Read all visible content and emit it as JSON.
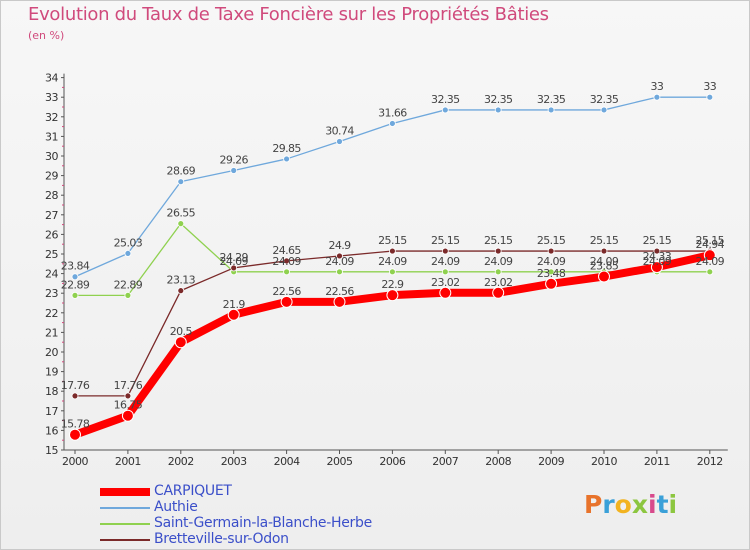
{
  "header": {
    "title": "Evolution du Taux de Taxe Foncière sur les Propriétés Bâties",
    "unit": "(en %)"
  },
  "brand": {
    "logo_text": "Proxiti"
  },
  "chart_data": {
    "type": "line",
    "title": "Evolution du Taux de Taxe Foncière sur les Propriétés Bâties",
    "ylabel": "(en %)",
    "xlabel": "",
    "ylim": [
      15,
      34
    ],
    "categories": [
      "2000",
      "2001",
      "2002",
      "2003",
      "2004",
      "2005",
      "2006",
      "2007",
      "2008",
      "2009",
      "2010",
      "2011",
      "2012"
    ],
    "series": [
      {
        "name": "CARPIQUET",
        "color": "#ff0000",
        "values": [
          15.78,
          16.75,
          20.5,
          21.9,
          22.56,
          22.56,
          22.9,
          23.02,
          23.02,
          23.48,
          23.85,
          24.33,
          24.94
        ],
        "labels": [
          "15.78",
          "16.75",
          "20.5",
          "21.9",
          "22.56",
          "22.56",
          "22.9",
          "23.02",
          "23.02",
          "23.48",
          "23.85",
          "24.33",
          "24.94"
        ]
      },
      {
        "name": "Authie",
        "color": "#6fa8dc",
        "values": [
          23.84,
          25.03,
          28.69,
          29.26,
          29.85,
          30.74,
          31.66,
          32.35,
          32.35,
          32.35,
          32.35,
          33,
          33
        ],
        "labels": [
          "23.84",
          "25.03",
          "28.69",
          "29.26",
          "29.85",
          "30.74",
          "31.66",
          "32.35",
          "32.35",
          "32.35",
          "32.35",
          "33",
          "33"
        ]
      },
      {
        "name": "Saint-Germain-la-Blanche-Herbe",
        "color": "#8fd14f",
        "values": [
          22.89,
          22.89,
          26.55,
          24.09,
          24.09,
          24.09,
          24.09,
          24.09,
          24.09,
          24.09,
          24.09,
          24.09,
          24.09
        ],
        "labels": [
          "22.89",
          "22.89",
          "26.55",
          "24.09",
          "24.09",
          "24.09",
          "24.09",
          "24.09",
          "24.09",
          "24.09",
          "24.09",
          "24.09",
          "24.09"
        ]
      },
      {
        "name": "Bretteville-sur-Odon",
        "color": "#7b2a2a",
        "values": [
          17.76,
          17.76,
          23.13,
          24.29,
          24.65,
          24.9,
          25.15,
          25.15,
          25.15,
          25.15,
          25.15,
          25.15,
          25.15
        ],
        "labels": [
          "17.76",
          "17.76",
          "23.13",
          "24.29",
          "24.65",
          "24.9",
          "25.15",
          "25.15",
          "25.15",
          "25.15",
          "25.15",
          "25.15",
          "25.15"
        ]
      }
    ],
    "legend_position": "bottom-left",
    "grid": false
  }
}
